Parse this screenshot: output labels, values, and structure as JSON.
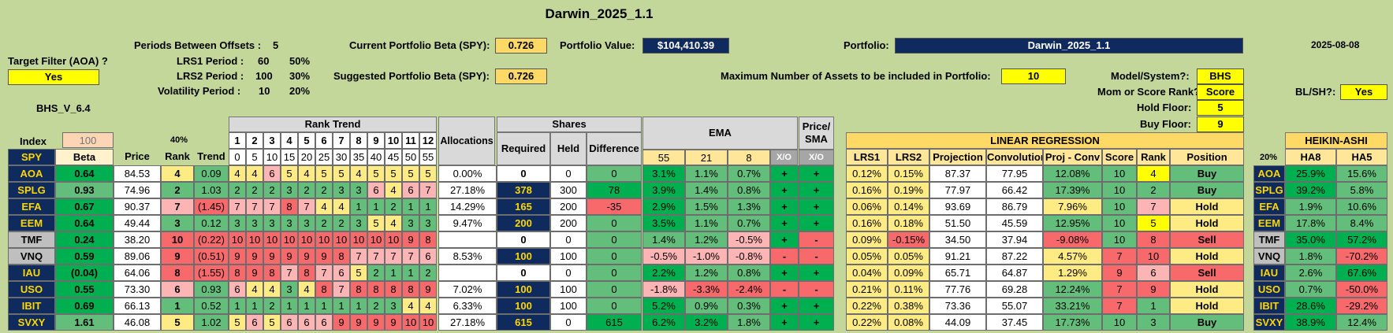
{
  "title": "Darwin_2025_1.1",
  "date": "2025-08-08",
  "version": "BHS_V_6.4",
  "target_filter": {
    "label": "Target Filter (AOA) ?",
    "value": "Yes"
  },
  "params": {
    "periods_label": "Periods Between Offsets :",
    "periods_value": "5",
    "lrs1_label": "LRS1 Period :",
    "lrs1_value": "60",
    "lrs1_pct": "50%",
    "lrs2_label": "LRS2 Period :",
    "lrs2_value": "100",
    "lrs2_pct": "30%",
    "vol_label": "Volatility Period :",
    "vol_value": "10",
    "vol_pct": "20%"
  },
  "portfolio": {
    "current_beta_label": "Current Portfolio Beta (SPY):",
    "current_beta": "0.726",
    "suggested_beta_label": "Suggested Portfolio Beta (SPY):",
    "suggested_beta": "0.726",
    "value_label": "Portfolio Value:",
    "value": "$104,410.39",
    "name_label": "Portfolio:",
    "name": "Darwin_2025_1.1",
    "max_assets_label": "Maximum Number of Assets to be included in Portfolio:",
    "max_assets": "10"
  },
  "settings": {
    "model_label": "Model/System?:",
    "model": "BHS",
    "rank_label": "Mom or Score Rank?:",
    "rank": "Score",
    "hold_label": "Hold Floor:",
    "hold": "5",
    "buy_label": "Buy Floor:",
    "buy": "9",
    "blsh_label": "BL/SH?:",
    "blsh": "Yes"
  },
  "headers": {
    "index": "Index",
    "index_val": "100",
    "pct40": "40%",
    "rank_trend": "Rank Trend",
    "trend_nums": [
      "1",
      "2",
      "3",
      "4",
      "5",
      "6",
      "7",
      "8",
      "9",
      "10",
      "11",
      "12"
    ],
    "trend_offsets": [
      "0",
      "5",
      "10",
      "15",
      "20",
      "25",
      "30",
      "35",
      "40",
      "45",
      "50",
      "55"
    ],
    "index_sym": "SPY",
    "beta": "Beta",
    "price": "Price",
    "rank": "Rank",
    "trend": "Trend",
    "allocations": "Allocations",
    "shares": "Shares",
    "required": "Required",
    "held": "Held",
    "difference": "Difference",
    "ema": "EMA",
    "ema_periods": [
      "55",
      "21",
      "8"
    ],
    "xo": "X/O",
    "price_sma": "Price/ SMA",
    "xo2": "X/O",
    "linreg": "LINEAR REGRESSION",
    "lrs1": "LRS1",
    "lrs2": "LRS2",
    "projection": "Projection",
    "convolution": "Convolution",
    "proj_conv": "Proj - Conv",
    "score": "Score",
    "rank2": "Rank",
    "position": "Position",
    "pct20": "20%",
    "heikin": "HEIKIN-ASHI",
    "ha8": "HA8",
    "ha5": "HA5"
  },
  "rows": [
    {
      "sym": "AOA",
      "beta": "0.64",
      "price": "84.53",
      "rank": "4",
      "trend": "0.09",
      "ranks": [
        "4",
        "4",
        "6",
        "5",
        "4",
        "5",
        "5",
        "4",
        "5",
        "5",
        "5",
        "5"
      ],
      "alloc": "0.00%",
      "req": "0",
      "held": "0",
      "diff": "0",
      "e55": "3.1%",
      "e21": "1.1%",
      "e8": "0.7%",
      "xo": "+",
      "sma": "+",
      "lrs1": "0.12%",
      "lrs2": "0.15%",
      "proj": "87.37",
      "conv": "77.95",
      "pc": "12.08%",
      "score": "10",
      "rank2": "4",
      "pos": "Buy",
      "ha8": "25.9%",
      "ha5": "15.6%"
    },
    {
      "sym": "SPLG",
      "beta": "0.93",
      "price": "74.96",
      "rank": "2",
      "trend": "1.03",
      "ranks": [
        "2",
        "2",
        "2",
        "3",
        "2",
        "2",
        "3",
        "3",
        "6",
        "4",
        "6",
        "7"
      ],
      "alloc": "27.18%",
      "req": "378",
      "held": "300",
      "diff": "78",
      "e55": "3.9%",
      "e21": "1.4%",
      "e8": "0.8%",
      "xo": "+",
      "sma": "+",
      "lrs1": "0.16%",
      "lrs2": "0.19%",
      "proj": "77.97",
      "conv": "66.42",
      "pc": "17.39%",
      "score": "10",
      "rank2": "2",
      "pos": "Buy",
      "ha8": "39.2%",
      "ha5": "5.8%"
    },
    {
      "sym": "EFA",
      "beta": "0.67",
      "price": "90.37",
      "rank": "7",
      "trend": "(1.45)",
      "ranks": [
        "7",
        "7",
        "7",
        "8",
        "7",
        "4",
        "4",
        "1",
        "1",
        "2",
        "1",
        "1"
      ],
      "alloc": "14.29%",
      "req": "165",
      "held": "200",
      "diff": "-35",
      "e55": "2.9%",
      "e21": "1.5%",
      "e8": "1.3%",
      "xo": "+",
      "sma": "+",
      "lrs1": "0.06%",
      "lrs2": "0.14%",
      "proj": "93.69",
      "conv": "86.79",
      "pc": "7.96%",
      "score": "10",
      "rank2": "7",
      "pos": "Hold",
      "ha8": "1.9%",
      "ha5": "10.6%"
    },
    {
      "sym": "EEM",
      "beta": "0.64",
      "price": "49.44",
      "rank": "3",
      "trend": "0.12",
      "ranks": [
        "3",
        "3",
        "3",
        "3",
        "3",
        "2",
        "2",
        "3",
        "5",
        "4",
        "3",
        "3"
      ],
      "alloc": "9.47%",
      "req": "200",
      "held": "200",
      "diff": "0",
      "e55": "3.5%",
      "e21": "1.1%",
      "e8": "0.7%",
      "xo": "+",
      "sma": "+",
      "lrs1": "0.16%",
      "lrs2": "0.18%",
      "proj": "51.50",
      "conv": "45.59",
      "pc": "12.95%",
      "score": "10",
      "rank2": "5",
      "pos": "Hold",
      "ha8": "17.8%",
      "ha5": "8.4%"
    },
    {
      "sym": "TMF",
      "beta": "0.24",
      "price": "38.20",
      "rank": "10",
      "trend": "(0.22)",
      "ranks": [
        "10",
        "10",
        "10",
        "10",
        "10",
        "10",
        "10",
        "10",
        "10",
        "10",
        "9",
        "8"
      ],
      "alloc": "",
      "req": "0",
      "held": "0",
      "diff": "0",
      "e55": "1.4%",
      "e21": "1.2%",
      "e8": "-0.5%",
      "xo": "+",
      "sma": "-",
      "lrs1": "0.09%",
      "lrs2": "-0.15%",
      "proj": "34.50",
      "conv": "37.94",
      "pc": "-9.08%",
      "score": "10",
      "rank2": "8",
      "pos": "Sell",
      "ha8": "35.0%",
      "ha5": "57.2%"
    },
    {
      "sym": "VNQ",
      "beta": "0.59",
      "price": "89.06",
      "rank": "9",
      "trend": "(0.51)",
      "ranks": [
        "9",
        "9",
        "9",
        "9",
        "9",
        "9",
        "8",
        "7",
        "7",
        "7",
        "7",
        "6"
      ],
      "alloc": "8.53%",
      "req": "100",
      "held": "100",
      "diff": "0",
      "e55": "-0.5%",
      "e21": "-1.0%",
      "e8": "-0.8%",
      "xo": "-",
      "sma": "-",
      "lrs1": "0.05%",
      "lrs2": "0.05%",
      "proj": "91.21",
      "conv": "87.22",
      "pc": "4.57%",
      "score": "7",
      "rank2": "10",
      "pos": "Hold",
      "ha8": "1.8%",
      "ha5": "-70.2%"
    },
    {
      "sym": "IAU",
      "beta": "(0.04)",
      "price": "64.06",
      "rank": "8",
      "trend": "(1.55)",
      "ranks": [
        "8",
        "9",
        "8",
        "7",
        "8",
        "7",
        "6",
        "5",
        "2",
        "1",
        "1",
        "2"
      ],
      "alloc": "",
      "req": "0",
      "held": "0",
      "diff": "0",
      "e55": "2.2%",
      "e21": "1.2%",
      "e8": "0.8%",
      "xo": "+",
      "sma": "+",
      "lrs1": "0.04%",
      "lrs2": "0.09%",
      "proj": "65.71",
      "conv": "64.87",
      "pc": "1.29%",
      "score": "9",
      "rank2": "6",
      "pos": "Sell",
      "ha8": "2.6%",
      "ha5": "67.6%"
    },
    {
      "sym": "USO",
      "beta": "0.55",
      "price": "73.30",
      "rank": "6",
      "trend": "0.93",
      "ranks": [
        "6",
        "4",
        "4",
        "3",
        "4",
        "8",
        "7",
        "8",
        "8",
        "8",
        "8",
        "9"
      ],
      "alloc": "7.02%",
      "req": "100",
      "held": "100",
      "diff": "0",
      "e55": "-1.8%",
      "e21": "-3.3%",
      "e8": "-2.4%",
      "xo": "-",
      "sma": "-",
      "lrs1": "0.21%",
      "lrs2": "0.11%",
      "proj": "77.76",
      "conv": "69.28",
      "pc": "12.24%",
      "score": "7",
      "rank2": "9",
      "pos": "Hold",
      "ha8": "0.7%",
      "ha5": "-50.0%"
    },
    {
      "sym": "IBIT",
      "beta": "0.69",
      "price": "66.13",
      "rank": "1",
      "trend": "0.52",
      "ranks": [
        "1",
        "1",
        "2",
        "1",
        "1",
        "1",
        "1",
        "1",
        "2",
        "3",
        "4",
        "4"
      ],
      "alloc": "6.33%",
      "req": "100",
      "held": "100",
      "diff": "0",
      "e55": "5.2%",
      "e21": "0.9%",
      "e8": "0.3%",
      "xo": "+",
      "sma": "+",
      "lrs1": "0.22%",
      "lrs2": "0.38%",
      "proj": "73.36",
      "conv": "55.07",
      "pc": "33.21%",
      "score": "7",
      "rank2": "1",
      "pos": "Hold",
      "ha8": "28.6%",
      "ha5": "-29.2%"
    },
    {
      "sym": "SVXY",
      "beta": "1.61",
      "price": "46.08",
      "rank": "5",
      "trend": "1.02",
      "ranks": [
        "5",
        "6",
        "5",
        "6",
        "6",
        "6",
        "9",
        "9",
        "9",
        "9",
        "10",
        "10"
      ],
      "alloc": "27.18%",
      "req": "615",
      "held": "0",
      "diff": "615",
      "e55": "6.2%",
      "e21": "3.2%",
      "e8": "1.8%",
      "xo": "+",
      "sma": "+",
      "lrs1": "0.22%",
      "lrs2": "0.08%",
      "proj": "44.09",
      "conv": "37.45",
      "pc": "17.73%",
      "score": "10",
      "rank2": "3",
      "pos": "Buy",
      "ha8": "38.9%",
      "ha5": "12.4%"
    }
  ]
}
